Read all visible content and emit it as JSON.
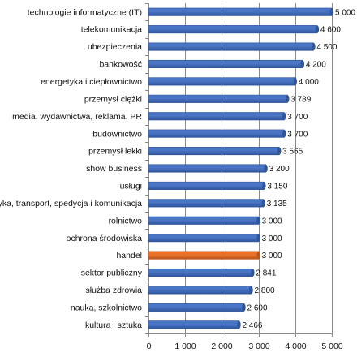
{
  "chart_data": {
    "type": "bar",
    "orientation": "horizontal",
    "categories": [
      "technologie informatyczne (IT)",
      "telekomunikacja",
      "ubezpieczenia",
      "bankowość",
      "energetyka i ciepłownictwo",
      "przemysł ciężki",
      "media, wydawnictwa, reklama, PR",
      "budownictwo",
      "przemysł lekki",
      "show business",
      "usługi",
      "logistyka, transport, spedycja i komunikacja",
      "rolnictwo",
      "ochrona środowiska",
      "handel",
      "sektor publiczny",
      "służba zdrowia",
      "nauka, szkolnictwo",
      "kultura i sztuka"
    ],
    "values": [
      5000,
      4600,
      4500,
      4200,
      4000,
      3789,
      3700,
      3700,
      3565,
      3200,
      3150,
      3135,
      3000,
      3000,
      3000,
      2841,
      2800,
      2600,
      2466
    ],
    "value_labels": [
      "5 000",
      "4 600",
      "4 500",
      "4 200",
      "4 000",
      "3 789",
      "3 700",
      "3 700",
      "3 565",
      "3 200",
      "3 150",
      "3 135",
      "3 000",
      "3 000",
      "3 000",
      "2 841",
      "2 800",
      "2 600",
      "2 466"
    ],
    "highlight_index": 14,
    "xlim": [
      0,
      5000
    ],
    "xticks": [
      0,
      1000,
      2000,
      3000,
      4000,
      5000
    ],
    "xtick_labels": [
      "0",
      "1 000",
      "2 000",
      "3 000",
      "4 000",
      "5 000"
    ],
    "grid": true,
    "legend": "none",
    "colors": {
      "bar": "#4a74c4",
      "bar_dark": "#2f559c",
      "highlight": "#e8722a",
      "highlight_dark": "#b8541b"
    }
  }
}
